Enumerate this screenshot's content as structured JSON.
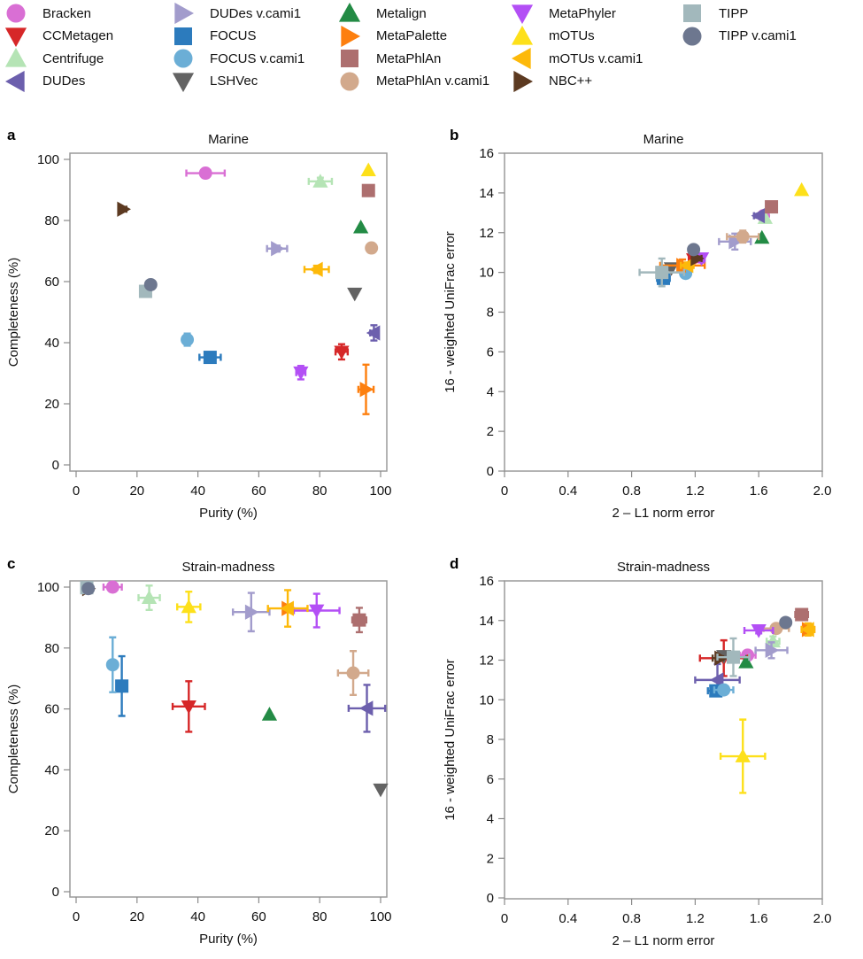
{
  "legend": {
    "items": [
      {
        "name": "Bracken",
        "color": "#d96fd4",
        "marker": "circle"
      },
      {
        "name": "CCMetagen",
        "color": "#d62728",
        "marker": "triangle-down"
      },
      {
        "name": "Centrifuge",
        "color": "#b5e4b5",
        "marker": "triangle-up"
      },
      {
        "name": "DUDes",
        "color": "#6c5fad",
        "marker": "triangle-left"
      },
      {
        "name": "DUDes v.cami1",
        "color": "#a29ccc",
        "marker": "triangle-right"
      },
      {
        "name": "FOCUS",
        "color": "#2c7bbd",
        "marker": "square"
      },
      {
        "name": "FOCUS v.cami1",
        "color": "#6baed6",
        "marker": "circle"
      },
      {
        "name": "LSHVec",
        "color": "#636363",
        "marker": "triangle-down"
      },
      {
        "name": "Metalign",
        "color": "#238b45",
        "marker": "triangle-up"
      },
      {
        "name": "MetaPalette",
        "color": "#fd7f0e",
        "marker": "triangle-right"
      },
      {
        "name": "MetaPhlAn",
        "color": "#ad6f6f",
        "marker": "square"
      },
      {
        "name": "MetaPhlAn v.cami1",
        "color": "#d2a98c",
        "marker": "circle"
      },
      {
        "name": "MetaPhyler",
        "color": "#b34ff5",
        "marker": "triangle-down"
      },
      {
        "name": "mOTUs",
        "color": "#fde01a",
        "marker": "triangle-up"
      },
      {
        "name": "mOTUs v.cami1",
        "color": "#fdb90a",
        "marker": "triangle-left"
      },
      {
        "name": "NBC++",
        "color": "#5c3a21",
        "marker": "triangle-right"
      },
      {
        "name": "TIPP",
        "color": "#a2b8bc",
        "marker": "square"
      },
      {
        "name": "TIPP v.cami1",
        "color": "#6d778f",
        "marker": "circle"
      }
    ]
  },
  "chart_data": [
    {
      "panel": "a",
      "type": "scatter",
      "title": "Marine",
      "xlabel": "Purity (%)",
      "ylabel": "Completeness (%)",
      "xlim": [
        0,
        100
      ],
      "ylim": [
        0,
        100
      ],
      "xticks": [
        "0",
        "20",
        "40",
        "60",
        "80",
        "100"
      ],
      "yticks": [
        "0",
        "20",
        "40",
        "60",
        "80",
        "100"
      ],
      "grid": false,
      "points": [
        {
          "tool": "Bracken",
          "x": 42.5,
          "y": 95.5,
          "xerr": 6.3,
          "yerr": 0
        },
        {
          "tool": "CCMetagen",
          "x": 87.2,
          "y": 37.0,
          "xerr": 2.0,
          "yerr": 2.5
        },
        {
          "tool": "Centrifuge",
          "x": 80.2,
          "y": 92.8,
          "xerr": 3.8,
          "yerr": 1.2
        },
        {
          "tool": "DUDes",
          "x": 97.8,
          "y": 43.2,
          "xerr": 1.2,
          "yerr": 2.5
        },
        {
          "tool": "DUDes v.cami1",
          "x": 66.0,
          "y": 70.8,
          "xerr": 3.3,
          "yerr": 1.0
        },
        {
          "tool": "FOCUS",
          "x": 44.0,
          "y": 35.2,
          "xerr": 3.5,
          "yerr": 1.2
        },
        {
          "tool": "FOCUS v.cami1",
          "x": 36.5,
          "y": 41.0,
          "xerr": 1.5,
          "yerr": 2.0
        },
        {
          "tool": "LSHVec",
          "x": 91.5,
          "y": 56.0,
          "xerr": 0,
          "yerr": 0
        },
        {
          "tool": "Metalign",
          "x": 93.5,
          "y": 77.8,
          "xerr": 0,
          "yerr": 0
        },
        {
          "tool": "MetaPalette",
          "x": 95.2,
          "y": 24.7,
          "xerr": 2.5,
          "yerr": 8.1
        },
        {
          "tool": "MetaPhlAn",
          "x": 96.0,
          "y": 89.8,
          "xerr": 0,
          "yerr": 0
        },
        {
          "tool": "MetaPhlAn v.cami1",
          "x": 97.0,
          "y": 71.0,
          "xerr": 0,
          "yerr": 0
        },
        {
          "tool": "MetaPhyler",
          "x": 73.8,
          "y": 30.2,
          "xerr": 1.5,
          "yerr": 2.2
        },
        {
          "tool": "mOTUs",
          "x": 96.0,
          "y": 96.5,
          "xerr": 0,
          "yerr": 0
        },
        {
          "tool": "mOTUs v.cami1",
          "x": 79.0,
          "y": 64.0,
          "xerr": 4.0,
          "yerr": 1.2
        },
        {
          "tool": "NBC++",
          "x": 15.5,
          "y": 83.7,
          "xerr": 1.0,
          "yerr": 0.5
        },
        {
          "tool": "TIPP",
          "x": 22.8,
          "y": 56.8,
          "xerr": 0,
          "yerr": 0
        },
        {
          "tool": "TIPP v.cami1",
          "x": 24.5,
          "y": 59.0,
          "xerr": 0.8,
          "yerr": 0.8
        }
      ]
    },
    {
      "panel": "b",
      "type": "scatter",
      "title": "Marine",
      "xlabel": "2 – L1 norm error",
      "ylabel": "16 - weighted UniFrac error",
      "xlim": [
        0,
        2.0
      ],
      "ylim": [
        0,
        16
      ],
      "xticks": [
        "0",
        "0.4",
        "0.8",
        "1.2",
        "1.6",
        "2.0"
      ],
      "yticks": [
        "0",
        "2",
        "4",
        "6",
        "8",
        "10",
        "12",
        "14",
        "16"
      ],
      "grid": false,
      "points": [
        {
          "tool": "Bracken",
          "x": 1.63,
          "y": 12.85,
          "xerr": 0,
          "yerr": 0
        },
        {
          "tool": "CCMetagen",
          "x": 1.19,
          "y": 10.65,
          "xerr": 0.03,
          "yerr": 0.15
        },
        {
          "tool": "Centrifuge",
          "x": 1.64,
          "y": 12.75,
          "xerr": 0,
          "yerr": 0
        },
        {
          "tool": "DUDes",
          "x": 1.6,
          "y": 12.85,
          "xerr": 0.03,
          "yerr": 0.1
        },
        {
          "tool": "DUDes v.cami1",
          "x": 1.45,
          "y": 11.55,
          "xerr": 0.1,
          "yerr": 0.4
        },
        {
          "tool": "FOCUS",
          "x": 1.0,
          "y": 9.7,
          "xerr": 0.04,
          "yerr": 0.1
        },
        {
          "tool": "FOCUS v.cami1",
          "x": 1.14,
          "y": 9.95,
          "xerr": 0.02,
          "yerr": 0.1
        },
        {
          "tool": "LSHVec",
          "x": 1.05,
          "y": 10.2,
          "xerr": 0,
          "yerr": 0
        },
        {
          "tool": "Metalign",
          "x": 1.62,
          "y": 11.75,
          "xerr": 0,
          "yerr": 0
        },
        {
          "tool": "MetaPalette",
          "x": 1.12,
          "y": 10.35,
          "xerr": 0.14,
          "yerr": 0.3
        },
        {
          "tool": "MetaPhlAn",
          "x": 1.68,
          "y": 13.3,
          "xerr": 0.03,
          "yerr": 0.1
        },
        {
          "tool": "MetaPhlAn v.cami1",
          "x": 1.5,
          "y": 11.8,
          "xerr": 0.1,
          "yerr": 0.3
        },
        {
          "tool": "MetaPhyler",
          "x": 1.24,
          "y": 10.7,
          "xerr": 0.02,
          "yerr": 0.2
        },
        {
          "tool": "mOTUs",
          "x": 1.87,
          "y": 14.15,
          "xerr": 0,
          "yerr": 0
        },
        {
          "tool": "mOTUs v.cami1",
          "x": 1.15,
          "y": 10.35,
          "xerr": 0.04,
          "yerr": 0.15
        },
        {
          "tool": "NBC++",
          "x": 1.21,
          "y": 10.7,
          "xerr": 0.03,
          "yerr": 0.1
        },
        {
          "tool": "TIPP",
          "x": 0.99,
          "y": 10.0,
          "xerr": 0.14,
          "yerr": 0.7
        },
        {
          "tool": "TIPP v.cami1",
          "x": 1.19,
          "y": 11.15,
          "xerr": 0.03,
          "yerr": 0.15
        }
      ]
    },
    {
      "panel": "c",
      "type": "scatter",
      "title": "Strain-madness",
      "xlabel": "Purity (%)",
      "ylabel": "Completeness (%)",
      "xlim": [
        0,
        100
      ],
      "ylim": [
        0,
        100
      ],
      "xticks": [
        "0",
        "20",
        "40",
        "60",
        "80",
        "100"
      ],
      "yticks": [
        "0",
        "20",
        "40",
        "60",
        "80",
        "100"
      ],
      "grid": false,
      "points": [
        {
          "tool": "Bracken",
          "x": 12.0,
          "y": 100.0,
          "xerr": 3.0,
          "yerr": 0
        },
        {
          "tool": "CCMetagen",
          "x": 37.0,
          "y": 60.8,
          "xerr": 5.3,
          "yerr": 8.3
        },
        {
          "tool": "Centrifuge",
          "x": 24.0,
          "y": 96.5,
          "xerr": 3.5,
          "yerr": 4.0
        },
        {
          "tool": "DUDes",
          "x": 95.5,
          "y": 60.2,
          "xerr": 6.0,
          "yerr": 7.7
        },
        {
          "tool": "DUDes v.cami1",
          "x": 57.5,
          "y": 91.8,
          "xerr": 6.0,
          "yerr": 6.3
        },
        {
          "tool": "FOCUS",
          "x": 15.0,
          "y": 67.5,
          "xerr": 1.5,
          "yerr": 9.8
        },
        {
          "tool": "FOCUS v.cami1",
          "x": 12.0,
          "y": 74.5,
          "xerr": 0,
          "yerr": 9.0
        },
        {
          "tool": "LSHVec",
          "x": 100.0,
          "y": 33.5,
          "xerr": 0,
          "yerr": 0
        },
        {
          "tool": "Metalign",
          "x": 63.5,
          "y": 58.2,
          "xerr": 0,
          "yerr": 0
        },
        {
          "tool": "MetaPalette",
          "x": 69.5,
          "y": 93.0,
          "xerr": 0,
          "yerr": 0
        },
        {
          "tool": "MetaPhlAn",
          "x": 93.0,
          "y": 89.2,
          "xerr": 2.3,
          "yerr": 4.0
        },
        {
          "tool": "MetaPhlAn v.cami1",
          "x": 91.0,
          "y": 71.8,
          "xerr": 5.0,
          "yerr": 7.2
        },
        {
          "tool": "MetaPhyler",
          "x": 79.0,
          "y": 92.3,
          "xerr": 7.5,
          "yerr": 5.5
        },
        {
          "tool": "mOTUs",
          "x": 37.0,
          "y": 93.5,
          "xerr": 3.8,
          "yerr": 5.0
        },
        {
          "tool": "mOTUs v.cami1",
          "x": 69.5,
          "y": 93.0,
          "xerr": 6.5,
          "yerr": 6.0
        },
        {
          "tool": "NBC++",
          "x": 4.0,
          "y": 99.5,
          "xerr": 0,
          "yerr": 0
        },
        {
          "tool": "TIPP",
          "x": 3.5,
          "y": 99.8,
          "xerr": 0,
          "yerr": 0
        },
        {
          "tool": "TIPP v.cami1",
          "x": 4.0,
          "y": 99.5,
          "xerr": 0,
          "yerr": 0
        }
      ]
    },
    {
      "panel": "d",
      "type": "scatter",
      "title": "Strain-madness",
      "xlabel": "2 – L1 norm error",
      "ylabel": "16 - weighted UniFrac error",
      "xlim": [
        0,
        2.0
      ],
      "ylim": [
        0,
        16
      ],
      "xticks": [
        "0",
        "0.4",
        "0.8",
        "1.2",
        "1.6",
        "2.0"
      ],
      "yticks": [
        "0",
        "2",
        "4",
        "6",
        "8",
        "10",
        "12",
        "14",
        "16"
      ],
      "grid": false,
      "points": [
        {
          "tool": "Bracken",
          "x": 1.53,
          "y": 12.25,
          "xerr": 0.05,
          "yerr": 0.1
        },
        {
          "tool": "CCMetagen",
          "x": 1.38,
          "y": 12.1,
          "xerr": 0.15,
          "yerr": 0.9
        },
        {
          "tool": "Centrifuge",
          "x": 1.69,
          "y": 12.95,
          "xerr": 0.04,
          "yerr": 0.25
        },
        {
          "tool": "DUDes",
          "x": 1.34,
          "y": 11.0,
          "xerr": 0.14,
          "yerr": 0.8
        },
        {
          "tool": "DUDes v.cami1",
          "x": 1.68,
          "y": 12.5,
          "xerr": 0.1,
          "yerr": 0.4
        },
        {
          "tool": "FOCUS",
          "x": 1.33,
          "y": 10.45,
          "xerr": 0.05,
          "yerr": 0.15
        },
        {
          "tool": "FOCUS v.cami1",
          "x": 1.38,
          "y": 10.5,
          "xerr": 0.06,
          "yerr": 0.1
        },
        {
          "tool": "LSHVec",
          "x": 1.38,
          "y": 12.2,
          "xerr": 0,
          "yerr": 0
        },
        {
          "tool": "Metalign",
          "x": 1.52,
          "y": 11.9,
          "xerr": 0,
          "yerr": 0
        },
        {
          "tool": "MetaPalette",
          "x": 1.91,
          "y": 13.55,
          "xerr": 0.04,
          "yerr": 0.3
        },
        {
          "tool": "MetaPhlAn",
          "x": 1.87,
          "y": 14.3,
          "xerr": 0.04,
          "yerr": 0.15
        },
        {
          "tool": "MetaPhlAn v.cami1",
          "x": 1.71,
          "y": 13.6,
          "xerr": 0.08,
          "yerr": 0.1
        },
        {
          "tool": "MetaPhyler",
          "x": 1.6,
          "y": 13.5,
          "xerr": 0.09,
          "yerr": 0.15
        },
        {
          "tool": "mOTUs",
          "x": 1.5,
          "y": 7.15,
          "xerr": 0.14,
          "yerr": 1.85
        },
        {
          "tool": "mOTUs v.cami1",
          "x": 1.91,
          "y": 13.55,
          "xerr": 0.04,
          "yerr": 0.3
        },
        {
          "tool": "NBC++",
          "x": 1.36,
          "y": 12.1,
          "xerr": 0.05,
          "yerr": 0.1
        },
        {
          "tool": "TIPP",
          "x": 1.44,
          "y": 12.15,
          "xerr": 0.1,
          "yerr": 0.95
        },
        {
          "tool": "TIPP v.cami1",
          "x": 1.77,
          "y": 13.9,
          "xerr": 0.02,
          "yerr": 0.1
        }
      ]
    }
  ]
}
